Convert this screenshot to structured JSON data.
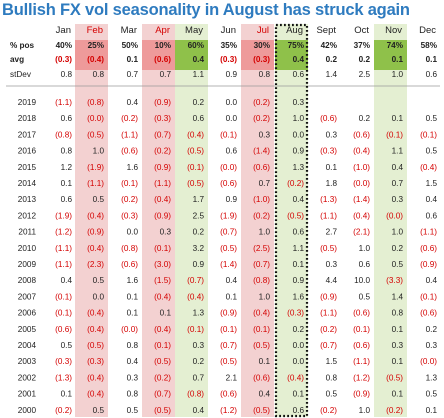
{
  "chart_data": {
    "type": "table",
    "title": "Bullish FX vol seasonality in August has struck again",
    "months": [
      "Jan",
      "Feb",
      "Mar",
      "Apr",
      "May",
      "Jun",
      "Jul",
      "Aug",
      "Sept",
      "Oct",
      "Nov",
      "Dec"
    ],
    "summary_rows": [
      {
        "label": "% pos",
        "values": [
          "40%",
          "25%",
          "50%",
          "10%",
          "60%",
          "35%",
          "30%",
          "75%",
          "42%",
          "37%",
          "74%",
          "58%"
        ]
      },
      {
        "label": "avg",
        "values": [
          "(0.3)",
          "(0.4)",
          "0.1",
          "(0.6)",
          "0.4",
          "(0.3)",
          "(0.3)",
          "0.4",
          "0.2",
          "0.2",
          "0.1",
          "0.1"
        ]
      },
      {
        "label": "stDev",
        "values": [
          "0.8",
          "0.8",
          "0.7",
          "0.7",
          "1.1",
          "0.9",
          "0.8",
          "0.6",
          "1.4",
          "2.5",
          "1.0",
          "0.6"
        ]
      }
    ],
    "years": [
      {
        "year": "2019",
        "values": [
          "(1.1)",
          "(0.8)",
          "0.4",
          "(0.9)",
          "0.2",
          "0.0",
          "(0.2)",
          "0.3",
          "",
          "",
          "",
          ""
        ]
      },
      {
        "year": "2018",
        "values": [
          "0.6",
          "(0.0)",
          "(0.2)",
          "(0.3)",
          "0.6",
          "0.0",
          "(0.2)",
          "1.0",
          "(0.6)",
          "0.2",
          "0.1",
          "0.5"
        ]
      },
      {
        "year": "2017",
        "values": [
          "(0.8)",
          "(0.5)",
          "(1.1)",
          "(0.7)",
          "(0.4)",
          "(0.1)",
          "0.3",
          "0.0",
          "0.3",
          "(0.6)",
          "(0.1)",
          "(0.1)"
        ]
      },
      {
        "year": "2016",
        "values": [
          "0.8",
          "1.0",
          "(0.6)",
          "(0.2)",
          "(0.5)",
          "0.6",
          "(1.4)",
          "0.9",
          "(0.3)",
          "(0.4)",
          "1.1",
          "0.5"
        ]
      },
      {
        "year": "2015",
        "values": [
          "1.2",
          "(1.9)",
          "1.6",
          "(0.9)",
          "(0.1)",
          "(0.0)",
          "(0.6)",
          "1.3",
          "0.1",
          "(1.0)",
          "0.4",
          "(0.4)"
        ]
      },
      {
        "year": "2014",
        "values": [
          "0.1",
          "(1.1)",
          "(0.1)",
          "(1.1)",
          "(0.5)",
          "(0.6)",
          "0.7",
          "(0.2)",
          "1.8",
          "(0.0)",
          "0.7",
          "1.5"
        ]
      },
      {
        "year": "2013",
        "values": [
          "0.6",
          "0.5",
          "(0.2)",
          "(0.4)",
          "1.7",
          "0.9",
          "(1.0)",
          "0.4",
          "(1.3)",
          "(1.4)",
          "0.3",
          "0.4"
        ]
      },
      {
        "year": "2012",
        "values": [
          "(1.9)",
          "(0.4)",
          "(0.3)",
          "(0.9)",
          "2.5",
          "(1.9)",
          "(0.2)",
          "(0.5)",
          "(1.1)",
          "(0.4)",
          "(0.0)",
          "0.6"
        ]
      },
      {
        "year": "2011",
        "values": [
          "(1.2)",
          "(0.9)",
          "0.0",
          "0.3",
          "0.2",
          "(0.7)",
          "1.0",
          "0.6",
          "2.7",
          "(2.1)",
          "1.0",
          "(1.1)"
        ]
      },
      {
        "year": "2010",
        "values": [
          "(1.1)",
          "(0.4)",
          "(0.8)",
          "(0.1)",
          "3.2",
          "(0.5)",
          "(2.5)",
          "1.1",
          "(0.5)",
          "1.0",
          "0.2",
          "(0.6)"
        ]
      },
      {
        "year": "2009",
        "values": [
          "(1.1)",
          "(2.3)",
          "(0.6)",
          "(3.0)",
          "0.9",
          "(1.4)",
          "(0.7)",
          "0.1",
          "0.3",
          "0.6",
          "0.5",
          "(0.9)"
        ]
      },
      {
        "year": "2008",
        "values": [
          "0.4",
          "0.5",
          "1.6",
          "(1.5)",
          "(0.7)",
          "0.4",
          "(0.8)",
          "0.9",
          "4.4",
          "10.0",
          "(3.3)",
          "0.4"
        ]
      },
      {
        "year": "2007",
        "values": [
          "(0.1)",
          "0.0",
          "0.1",
          "(0.4)",
          "(0.4)",
          "0.1",
          "1.0",
          "1.6",
          "(0.9)",
          "0.5",
          "1.4",
          "(0.1)"
        ]
      },
      {
        "year": "2006",
        "values": [
          "(0.1)",
          "(0.4)",
          "0.1",
          "0.1",
          "1.3",
          "(0.9)",
          "(0.4)",
          "(0.3)",
          "(1.1)",
          "(0.6)",
          "0.8",
          "(0.6)"
        ]
      },
      {
        "year": "2005",
        "values": [
          "(0.6)",
          "(0.4)",
          "(0.0)",
          "(0.4)",
          "(0.1)",
          "(0.1)",
          "(0.1)",
          "0.2",
          "(0.2)",
          "(0.1)",
          "0.1",
          "0.2"
        ]
      },
      {
        "year": "2004",
        "values": [
          "0.5",
          "(0.5)",
          "0.8",
          "(0.1)",
          "0.3",
          "(0.7)",
          "(0.5)",
          "0.0",
          "(0.7)",
          "(0.6)",
          "0.3",
          "0.3"
        ]
      },
      {
        "year": "2003",
        "values": [
          "(0.3)",
          "(0.3)",
          "0.4",
          "(0.5)",
          "0.2",
          "(0.5)",
          "0.1",
          "0.0",
          "1.5",
          "(1.1)",
          "0.1",
          "(0.0)"
        ]
      },
      {
        "year": "2002",
        "values": [
          "(1.3)",
          "(0.4)",
          "0.3",
          "(0.2)",
          "0.7",
          "2.1",
          "(0.6)",
          "(0.4)",
          "0.8",
          "(1.2)",
          "(0.5)",
          "1.3"
        ]
      },
      {
        "year": "2001",
        "values": [
          "0.1",
          "(0.4)",
          "0.8",
          "(0.7)",
          "(0.8)",
          "(0.6)",
          "0.4",
          "0.1",
          "0.5",
          "(0.9)",
          "0.1",
          "0.5"
        ]
      },
      {
        "year": "2000",
        "values": [
          "(0.2)",
          "0.5",
          "0.5",
          "(0.5)",
          "0.4",
          "(1.2)",
          "(0.5)",
          "0.6",
          "(0.2)",
          "1.0",
          "(0.2)",
          "0.1"
        ]
      }
    ],
    "highlights": {
      "positive_months": [
        "May",
        "Aug",
        "Nov"
      ],
      "negative_months": [
        "Feb",
        "Apr",
        "Jul"
      ],
      "boxed_month": "Aug"
    },
    "colors": {
      "title": "#2e7bbf",
      "negative_text": "#d40000",
      "positive_text": "#222222",
      "negative_fill": "#f3d1d1",
      "negative_fill_strong": "#ee9a9a",
      "positive_fill": "#e4efd2",
      "positive_fill_strong": "#8fc14a"
    }
  }
}
